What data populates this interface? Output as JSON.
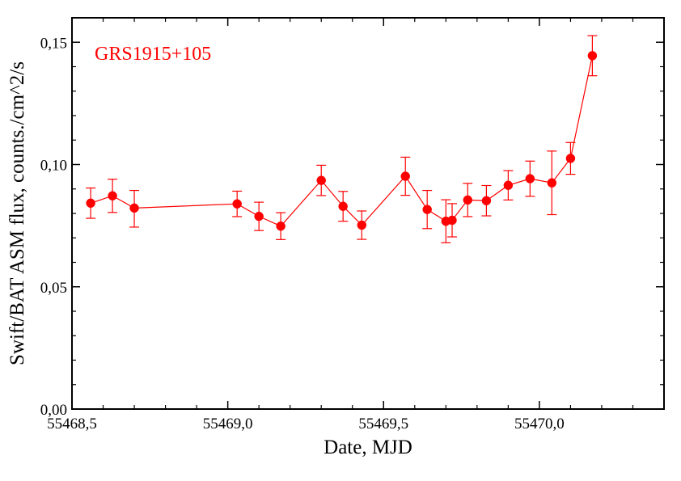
{
  "chart_data": {
    "type": "scatter",
    "title": "",
    "xlabel": "Date,  MJD",
    "ylabel": "Swift/BAT ASM flux,  counts./cm^2/s",
    "xlim": [
      55468.5,
      55470.4
    ],
    "ylim": [
      0.0,
      0.16
    ],
    "x_ticks": [
      55468.5,
      55469.0,
      55469.5,
      55470.0
    ],
    "x_tick_labels": [
      "55468,5",
      "55469,0",
      "55469,5",
      "55470,0"
    ],
    "y_ticks": [
      0.0,
      0.05,
      0.1,
      0.15
    ],
    "y_tick_labels": [
      "0,00",
      "0,05",
      "0,10",
      "0,15"
    ],
    "grid": false,
    "legend": "none",
    "annotation": {
      "text": "GRS1915+105",
      "color": "#ff0000"
    },
    "series": [
      {
        "color": "#ff0000",
        "marker": "filled-circle",
        "connected": true,
        "points": [
          {
            "x": 55468.56,
            "y": 0.0842,
            "err_low": 0.0062,
            "err_high": 0.0062
          },
          {
            "x": 55468.63,
            "y": 0.0872,
            "err_low": 0.0068,
            "err_high": 0.0068
          },
          {
            "x": 55468.7,
            "y": 0.0822,
            "err_low": 0.0078,
            "err_high": 0.0072
          },
          {
            "x": 55469.03,
            "y": 0.0839,
            "err_low": 0.0052,
            "err_high": 0.0052
          },
          {
            "x": 55469.1,
            "y": 0.0788,
            "err_low": 0.0058,
            "err_high": 0.0058
          },
          {
            "x": 55469.17,
            "y": 0.0748,
            "err_low": 0.0055,
            "err_high": 0.0055
          },
          {
            "x": 55469.3,
            "y": 0.0935,
            "err_low": 0.0062,
            "err_high": 0.0062
          },
          {
            "x": 55469.37,
            "y": 0.0829,
            "err_low": 0.0061,
            "err_high": 0.0061
          },
          {
            "x": 55469.43,
            "y": 0.0752,
            "err_low": 0.0058,
            "err_high": 0.0058
          },
          {
            "x": 55469.57,
            "y": 0.0952,
            "err_low": 0.0078,
            "err_high": 0.0078
          },
          {
            "x": 55469.64,
            "y": 0.0816,
            "err_low": 0.0078,
            "err_high": 0.0078
          },
          {
            "x": 55469.7,
            "y": 0.0768,
            "err_low": 0.0088,
            "err_high": 0.0088
          },
          {
            "x": 55469.72,
            "y": 0.0772,
            "err_low": 0.0068,
            "err_high": 0.0068
          },
          {
            "x": 55469.77,
            "y": 0.0855,
            "err_low": 0.0068,
            "err_high": 0.0068
          },
          {
            "x": 55469.83,
            "y": 0.0852,
            "err_low": 0.0062,
            "err_high": 0.0062
          },
          {
            "x": 55469.9,
            "y": 0.0915,
            "err_low": 0.006,
            "err_high": 0.006
          },
          {
            "x": 55469.97,
            "y": 0.0942,
            "err_low": 0.0072,
            "err_high": 0.0072
          },
          {
            "x": 55470.04,
            "y": 0.0925,
            "err_low": 0.013,
            "err_high": 0.013
          },
          {
            "x": 55470.1,
            "y": 0.1025,
            "err_low": 0.0065,
            "err_high": 0.0065
          },
          {
            "x": 55470.17,
            "y": 0.1445,
            "err_low": 0.0082,
            "err_high": 0.0082
          }
        ]
      }
    ]
  }
}
